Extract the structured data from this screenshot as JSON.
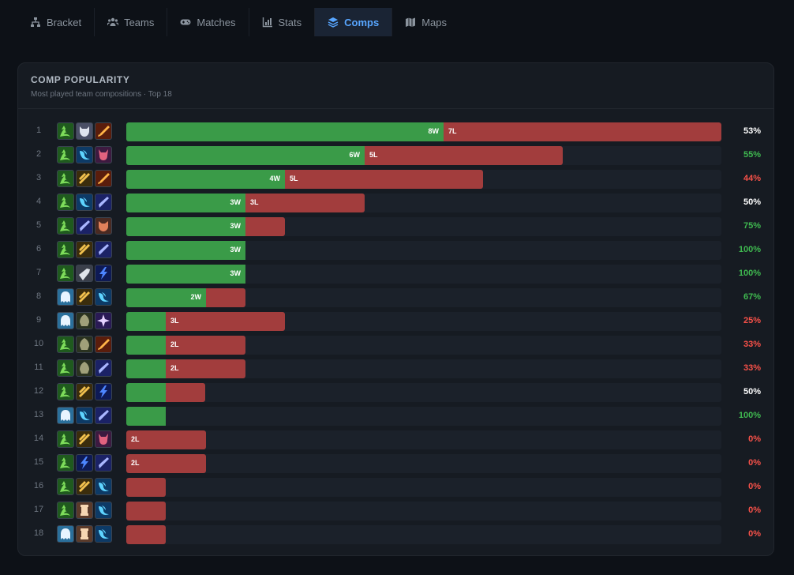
{
  "tabs": [
    {
      "label": "Bracket",
      "icon": "sitemap-icon",
      "active": false
    },
    {
      "label": "Teams",
      "icon": "users-icon",
      "active": false
    },
    {
      "label": "Matches",
      "icon": "gamepad-icon",
      "active": false
    },
    {
      "label": "Stats",
      "icon": "chart-icon",
      "active": false
    },
    {
      "label": "Comps",
      "icon": "layers-icon",
      "active": true
    },
    {
      "label": "Maps",
      "icon": "map-icon",
      "active": false
    }
  ],
  "card": {
    "title": "COMP POPULARITY",
    "subtitle": "Most played team compositions · Top 18"
  },
  "colors": {
    "win": "#3a9b48",
    "loss": "#a23d3d",
    "pct_good": "#3fb950",
    "pct_bad": "#f85149",
    "pct_even": "#ffffff"
  },
  "icon_styles": {
    "green": {
      "bg": "#1f5a1e",
      "fg": "#7ddc5a"
    },
    "wolf": {
      "bg": "#4a4f66",
      "fg": "#dfe3ee"
    },
    "fire": {
      "bg": "#5a1d0c",
      "fg": "#ffb347"
    },
    "wave": {
      "bg": "#0d3a66",
      "fg": "#5ed4ff"
    },
    "demon": {
      "bg": "#3d1a40",
      "fg": "#e2627f"
    },
    "gold": {
      "bg": "#3b2d0c",
      "fg": "#f2c14e"
    },
    "ice": {
      "bg": "#1b2266",
      "fg": "#a9b6ff"
    },
    "bolt": {
      "bg": "#0e1a55",
      "fg": "#4d86ff"
    },
    "ghost": {
      "bg": "#2a6f9b",
      "fg": "#e8f4ff"
    },
    "hood": {
      "bg": "#2a3220",
      "fg": "#a0a07a"
    },
    "arcane": {
      "bg": "#2a1a55",
      "fg": "#e6d2ff"
    },
    "rogue": {
      "bg": "#4a2a22",
      "fg": "#e0805a"
    },
    "blade": {
      "bg": "#3a3f4a",
      "fg": "#dfe4ea"
    },
    "scroll": {
      "bg": "#5a3a2a",
      "fg": "#f6d6b2"
    }
  },
  "max_games": 15,
  "comps": [
    {
      "rank": "1",
      "icons": [
        "green",
        "wolf",
        "fire"
      ],
      "wins": 8,
      "losses": 7,
      "win_label": "8W",
      "loss_label": "7L",
      "pct": "53%",
      "tone": "even"
    },
    {
      "rank": "2",
      "icons": [
        "green",
        "wave",
        "demon"
      ],
      "wins": 6,
      "losses": 5,
      "win_label": "6W",
      "loss_label": "5L",
      "pct": "55%",
      "tone": "good"
    },
    {
      "rank": "3",
      "icons": [
        "green",
        "gold",
        "fire"
      ],
      "wins": 4,
      "losses": 5,
      "win_label": "4W",
      "loss_label": "5L",
      "pct": "44%",
      "tone": "bad"
    },
    {
      "rank": "4",
      "icons": [
        "green",
        "wave",
        "ice"
      ],
      "wins": 3,
      "losses": 3,
      "win_label": "3W",
      "loss_label": "3L",
      "pct": "50%",
      "tone": "even"
    },
    {
      "rank": "5",
      "icons": [
        "green",
        "ice",
        "rogue"
      ],
      "wins": 3,
      "losses": 1,
      "win_label": "3W",
      "loss_label": "",
      "pct": "75%",
      "tone": "good"
    },
    {
      "rank": "6",
      "icons": [
        "green",
        "gold",
        "ice"
      ],
      "wins": 3,
      "losses": 0,
      "win_label": "3W",
      "loss_label": "",
      "pct": "100%",
      "tone": "good"
    },
    {
      "rank": "7",
      "icons": [
        "green",
        "blade",
        "bolt"
      ],
      "wins": 3,
      "losses": 0,
      "win_label": "3W",
      "loss_label": "",
      "pct": "100%",
      "tone": "good"
    },
    {
      "rank": "8",
      "icons": [
        "ghost",
        "gold",
        "wave"
      ],
      "wins": 2,
      "losses": 1,
      "win_label": "2W",
      "loss_label": "",
      "pct": "67%",
      "tone": "good"
    },
    {
      "rank": "9",
      "icons": [
        "ghost",
        "hood",
        "arcane"
      ],
      "wins": 1,
      "losses": 3,
      "win_label": "",
      "loss_label": "3L",
      "pct": "25%",
      "tone": "bad"
    },
    {
      "rank": "10",
      "icons": [
        "green",
        "hood",
        "fire"
      ],
      "wins": 1,
      "losses": 2,
      "win_label": "",
      "loss_label": "2L",
      "pct": "33%",
      "tone": "bad"
    },
    {
      "rank": "11",
      "icons": [
        "green",
        "hood",
        "ice"
      ],
      "wins": 1,
      "losses": 2,
      "win_label": "",
      "loss_label": "2L",
      "pct": "33%",
      "tone": "bad"
    },
    {
      "rank": "12",
      "icons": [
        "green",
        "gold",
        "bolt"
      ],
      "wins": 1,
      "losses": 1,
      "win_label": "",
      "loss_label": "",
      "pct": "50%",
      "tone": "even"
    },
    {
      "rank": "13",
      "icons": [
        "ghost",
        "wave",
        "ice"
      ],
      "wins": 1,
      "losses": 0,
      "win_label": "",
      "loss_label": "",
      "pct": "100%",
      "tone": "good"
    },
    {
      "rank": "14",
      "icons": [
        "green",
        "gold",
        "demon"
      ],
      "wins": 0,
      "losses": 2,
      "win_label": "",
      "loss_label": "2L",
      "pct": "0%",
      "tone": "bad"
    },
    {
      "rank": "15",
      "icons": [
        "green",
        "bolt",
        "ice"
      ],
      "wins": 0,
      "losses": 2,
      "win_label": "",
      "loss_label": "2L",
      "pct": "0%",
      "tone": "bad"
    },
    {
      "rank": "16",
      "icons": [
        "green",
        "gold",
        "wave"
      ],
      "wins": 0,
      "losses": 1,
      "win_label": "",
      "loss_label": "",
      "pct": "0%",
      "tone": "bad"
    },
    {
      "rank": "17",
      "icons": [
        "green",
        "scroll",
        "wave"
      ],
      "wins": 0,
      "losses": 1,
      "win_label": "",
      "loss_label": "",
      "pct": "0%",
      "tone": "bad"
    },
    {
      "rank": "18",
      "icons": [
        "ghost",
        "scroll",
        "wave"
      ],
      "wins": 0,
      "losses": 1,
      "win_label": "",
      "loss_label": "",
      "pct": "0%",
      "tone": "bad"
    }
  ]
}
